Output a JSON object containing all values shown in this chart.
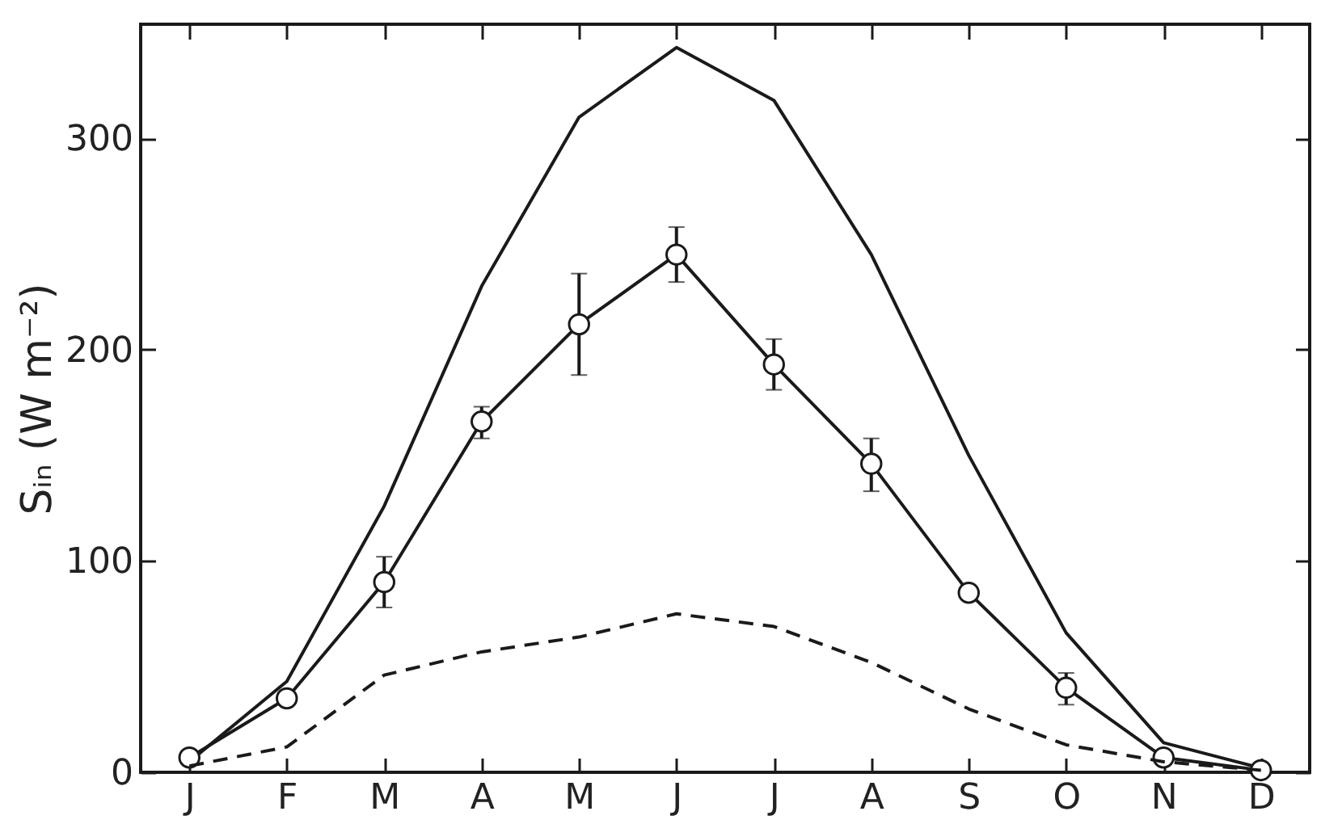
{
  "chart_data": {
    "type": "line",
    "ylabel": "Sᵢₙ (W m⁻²)",
    "categories": [
      "J",
      "F",
      "M",
      "A",
      "M",
      "J",
      "J",
      "A",
      "S",
      "O",
      "N",
      "D"
    ],
    "series": [
      {
        "color": "#1a1a1a",
        "line_style": "solid",
        "marker": "none",
        "values": [
          5,
          43,
          126,
          230,
          310,
          343,
          318,
          245,
          150,
          66,
          14,
          2
        ]
      },
      {
        "color": "#1a1a1a",
        "line_style": "solid",
        "marker": "circle",
        "values": [
          7,
          35,
          90,
          166,
          212,
          245,
          193,
          146,
          85,
          40,
          7,
          1
        ],
        "errors": [
          null,
          null,
          [
            78,
            102
          ],
          [
            158,
            173
          ],
          [
            188,
            236
          ],
          [
            232,
            258
          ],
          [
            181,
            205
          ],
          [
            133,
            158
          ],
          null,
          [
            32,
            47
          ],
          null,
          null
        ]
      },
      {
        "color": "#1a1a1a",
        "line_style": "dashed",
        "marker": "none",
        "values": [
          3,
          12,
          46,
          57,
          64,
          75,
          69,
          52,
          30,
          13,
          5,
          1
        ]
      }
    ],
    "ylim": [
      0,
      354
    ],
    "yticks": [
      0,
      100,
      200,
      300
    ]
  }
}
